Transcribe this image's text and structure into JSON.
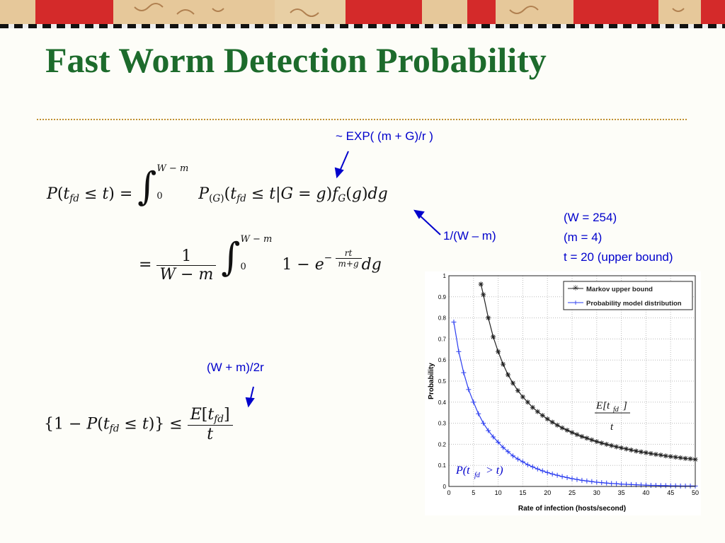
{
  "slide": {
    "title": "Fast Worm Detection Probability"
  },
  "annotations": {
    "exp": "~ EXP( (m + G)/r )",
    "inv": "1/(W – m)",
    "mean": "(W + m)/2r",
    "param_w": "(W = 254)",
    "param_m": "(m = 4)",
    "param_t": "t = 20 (upper bound)"
  },
  "colors": {
    "title": "#1d6b2c",
    "annotation": "#0000cc",
    "markov": "#222222",
    "model": "#2a3cf0"
  },
  "chart_data": {
    "type": "line",
    "xlabel": "Rate of infection (hosts/second)",
    "ylabel": "Probability",
    "xlim": [
      0,
      50
    ],
    "ylim": [
      0,
      1
    ],
    "xticks": [
      "0",
      "5",
      "10",
      "15",
      "20",
      "25",
      "30",
      "35",
      "40",
      "45",
      "50"
    ],
    "yticks": [
      "0",
      "0.1",
      "0.2",
      "0.3",
      "0.4",
      "0.5",
      "0.6",
      "0.7",
      "0.8",
      "0.9",
      "1"
    ],
    "grid": true,
    "legend_position": "top-right",
    "series": [
      {
        "name": "Markov upper bound",
        "marker": "asterisk",
        "color": "#222222",
        "x": [
          6.5,
          7,
          8,
          9,
          10,
          11,
          12,
          13,
          14,
          15,
          16,
          17,
          18,
          19,
          20,
          21,
          22,
          23,
          24,
          25,
          26,
          27,
          28,
          29,
          30,
          31,
          32,
          33,
          34,
          35,
          36,
          37,
          38,
          39,
          40,
          41,
          42,
          43,
          44,
          45,
          46,
          47,
          48,
          49,
          50
        ],
        "y": [
          0.96,
          0.91,
          0.8,
          0.71,
          0.64,
          0.58,
          0.53,
          0.49,
          0.455,
          0.425,
          0.4,
          0.375,
          0.355,
          0.337,
          0.32,
          0.305,
          0.291,
          0.278,
          0.267,
          0.256,
          0.246,
          0.237,
          0.229,
          0.221,
          0.213,
          0.206,
          0.2,
          0.194,
          0.188,
          0.183,
          0.178,
          0.173,
          0.168,
          0.164,
          0.16,
          0.156,
          0.152,
          0.149,
          0.145,
          0.142,
          0.139,
          0.136,
          0.133,
          0.131,
          0.128
        ]
      },
      {
        "name": "Probability model distribution",
        "marker": "plus",
        "color": "#2a3cf0",
        "x": [
          1,
          2,
          3,
          4,
          5,
          6,
          7,
          8,
          9,
          10,
          11,
          12,
          13,
          14,
          15,
          16,
          17,
          18,
          19,
          20,
          21,
          22,
          23,
          24,
          25,
          26,
          27,
          28,
          29,
          30,
          31,
          32,
          33,
          34,
          35,
          36,
          37,
          38,
          39,
          40,
          41,
          42,
          43,
          44,
          45,
          46,
          47,
          48,
          49,
          50
        ],
        "y": [
          0.78,
          0.64,
          0.54,
          0.46,
          0.4,
          0.345,
          0.3,
          0.265,
          0.235,
          0.21,
          0.185,
          0.165,
          0.145,
          0.13,
          0.117,
          0.103,
          0.093,
          0.083,
          0.074,
          0.066,
          0.059,
          0.053,
          0.047,
          0.042,
          0.037,
          0.033,
          0.029,
          0.026,
          0.023,
          0.02,
          0.018,
          0.016,
          0.014,
          0.013,
          0.011,
          0.01,
          0.009,
          0.008,
          0.007,
          0.006,
          0.005,
          0.005,
          0.004,
          0.004,
          0.003,
          0.003,
          0.002,
          0.002,
          0.002,
          0.002
        ]
      }
    ]
  }
}
